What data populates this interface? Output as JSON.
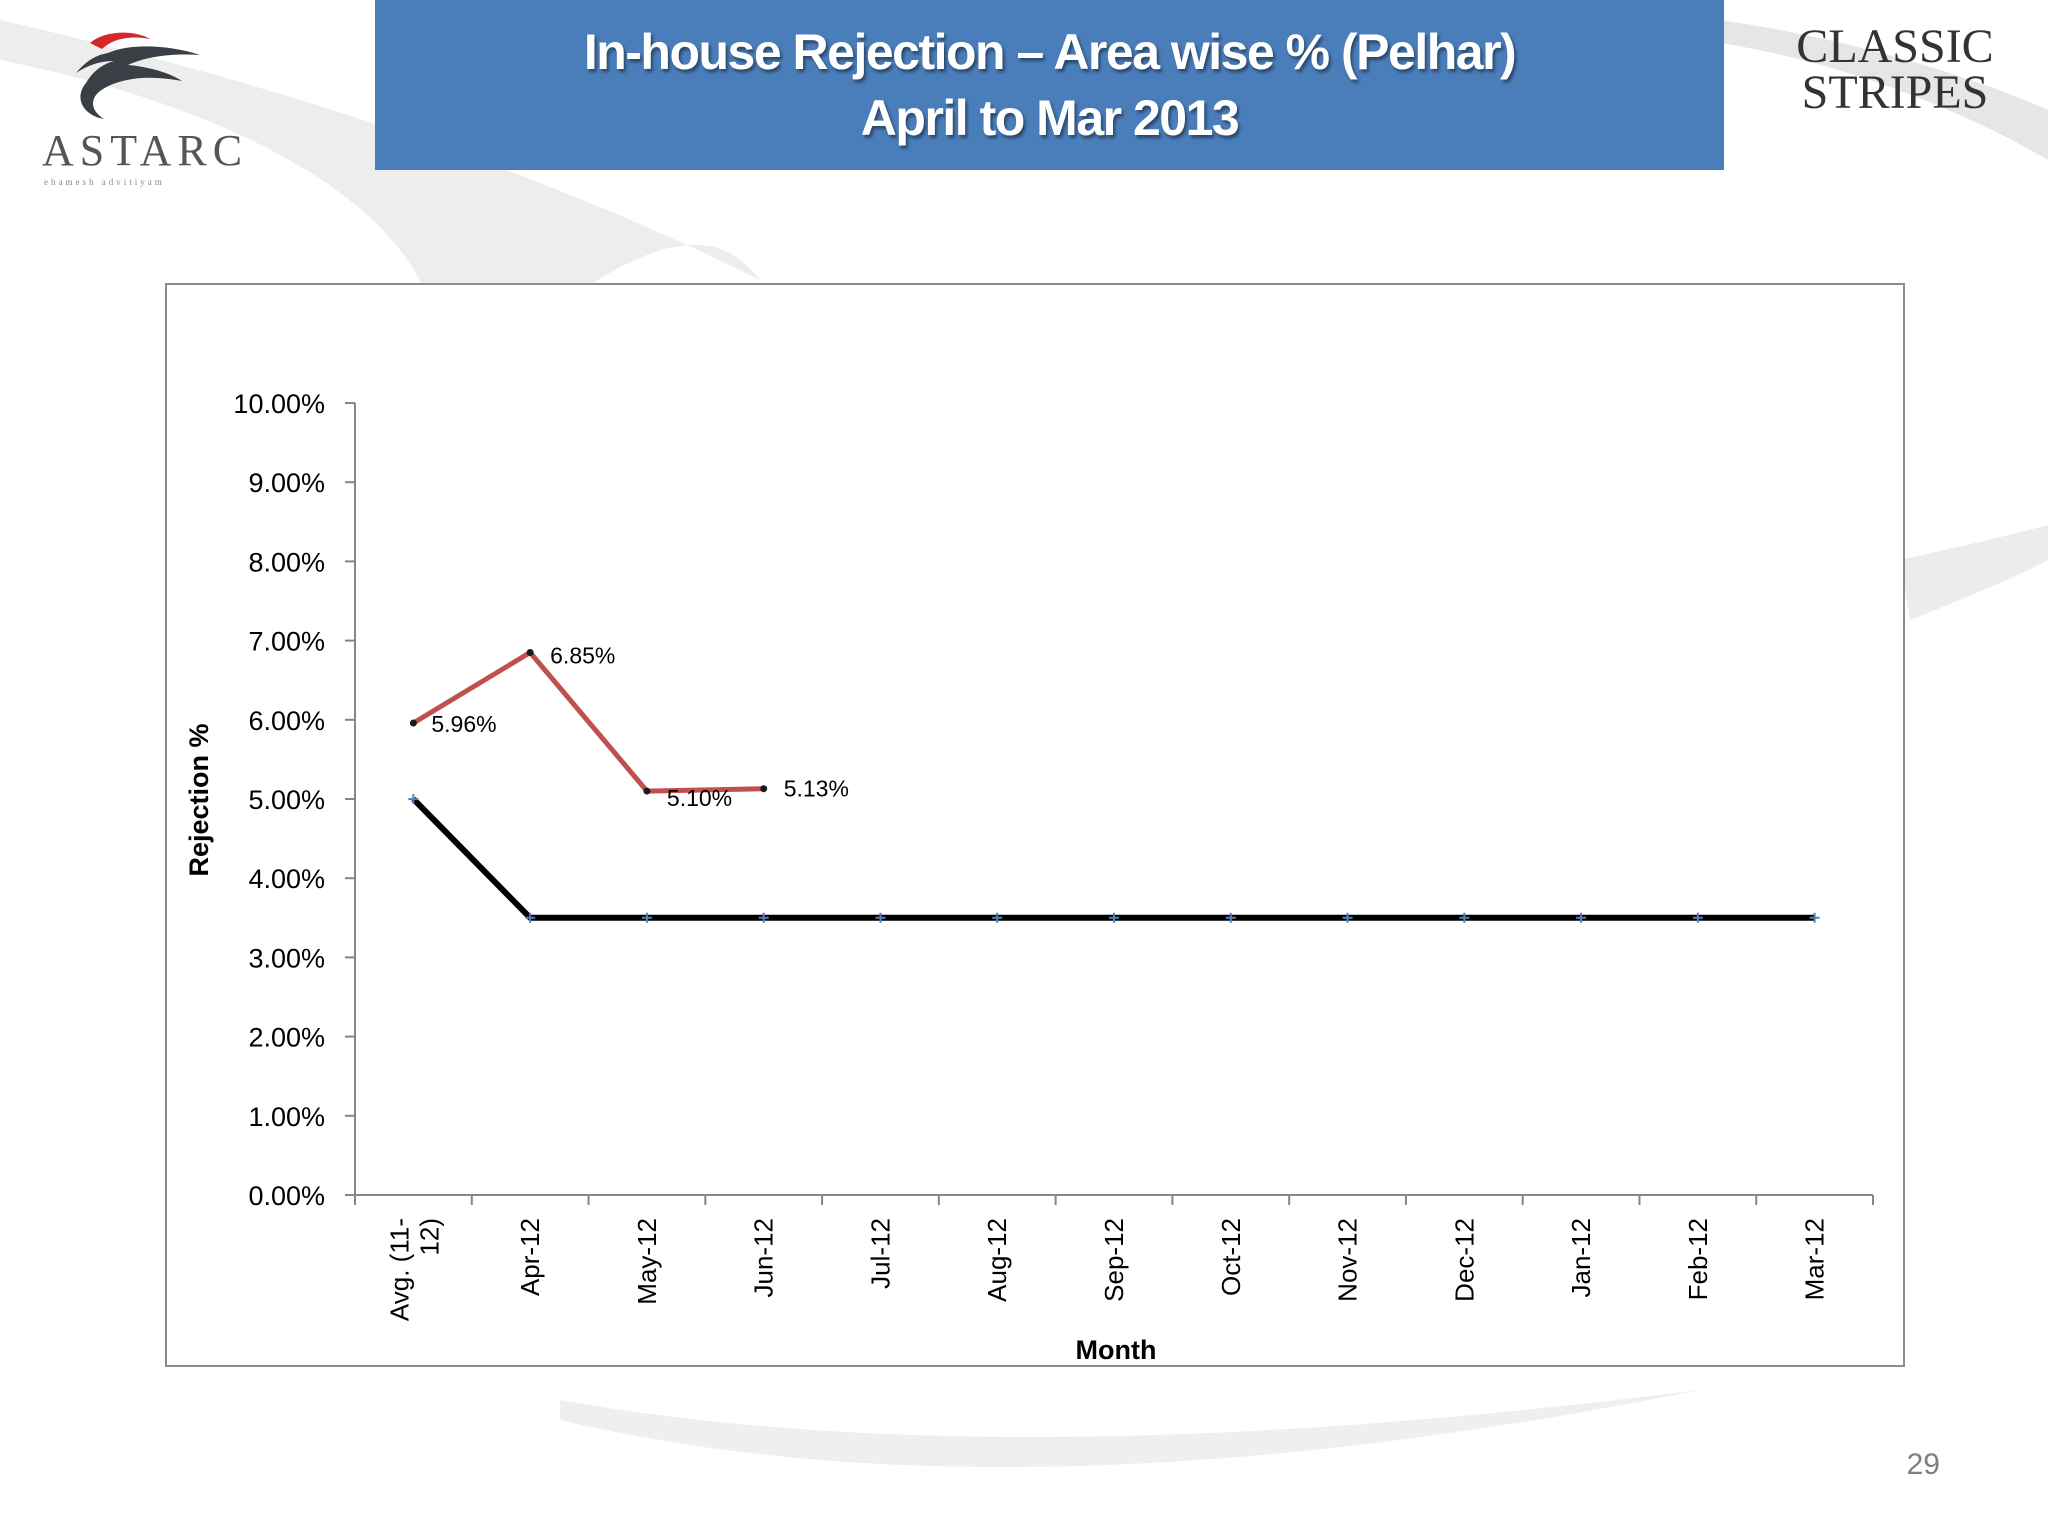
{
  "slide": {
    "title_line1": "In-house Rejection – Area wise % (Pelhar)",
    "title_line2": "April  to Mar 2013",
    "page_number": "29",
    "title_bg_color": "#4a7ebb"
  },
  "logos": {
    "left_text": "ASTARC",
    "left_tagline": "ehamesh advitiyam",
    "right_line1": "CLASSIC",
    "right_line2": "STRIPES"
  },
  "chart_data": {
    "type": "line",
    "title": "",
    "xlabel": "Month",
    "ylabel": "Rejection %",
    "ylim": [
      0,
      10
    ],
    "y_ticks": [
      "0.00%",
      "1.00%",
      "2.00%",
      "3.00%",
      "4.00%",
      "5.00%",
      "6.00%",
      "7.00%",
      "8.00%",
      "9.00%",
      "10.00%"
    ],
    "categories": [
      "Avg. (11-12)",
      "Apr-12",
      "May-12",
      "Jun-12",
      "Jul-12",
      "Aug-12",
      "Sep-12",
      "Oct-12",
      "Nov-12",
      "Dec-12",
      "Jan-12",
      "Feb-12",
      "Mar-12"
    ],
    "grid": false,
    "legend": "none",
    "series": [
      {
        "color": "#c0504d",
        "values": [
          5.96,
          6.85,
          5.1,
          5.13,
          null,
          null,
          null,
          null,
          null,
          null,
          null,
          null,
          null
        ],
        "labels": [
          "5.96%",
          "6.85%",
          "5.10%",
          "5.13%"
        ]
      },
      {
        "color": "#000000",
        "values": [
          5.0,
          3.5,
          3.5,
          3.5,
          3.5,
          3.5,
          3.5,
          3.5,
          3.5,
          3.5,
          3.5,
          3.5,
          3.5
        ]
      }
    ]
  }
}
